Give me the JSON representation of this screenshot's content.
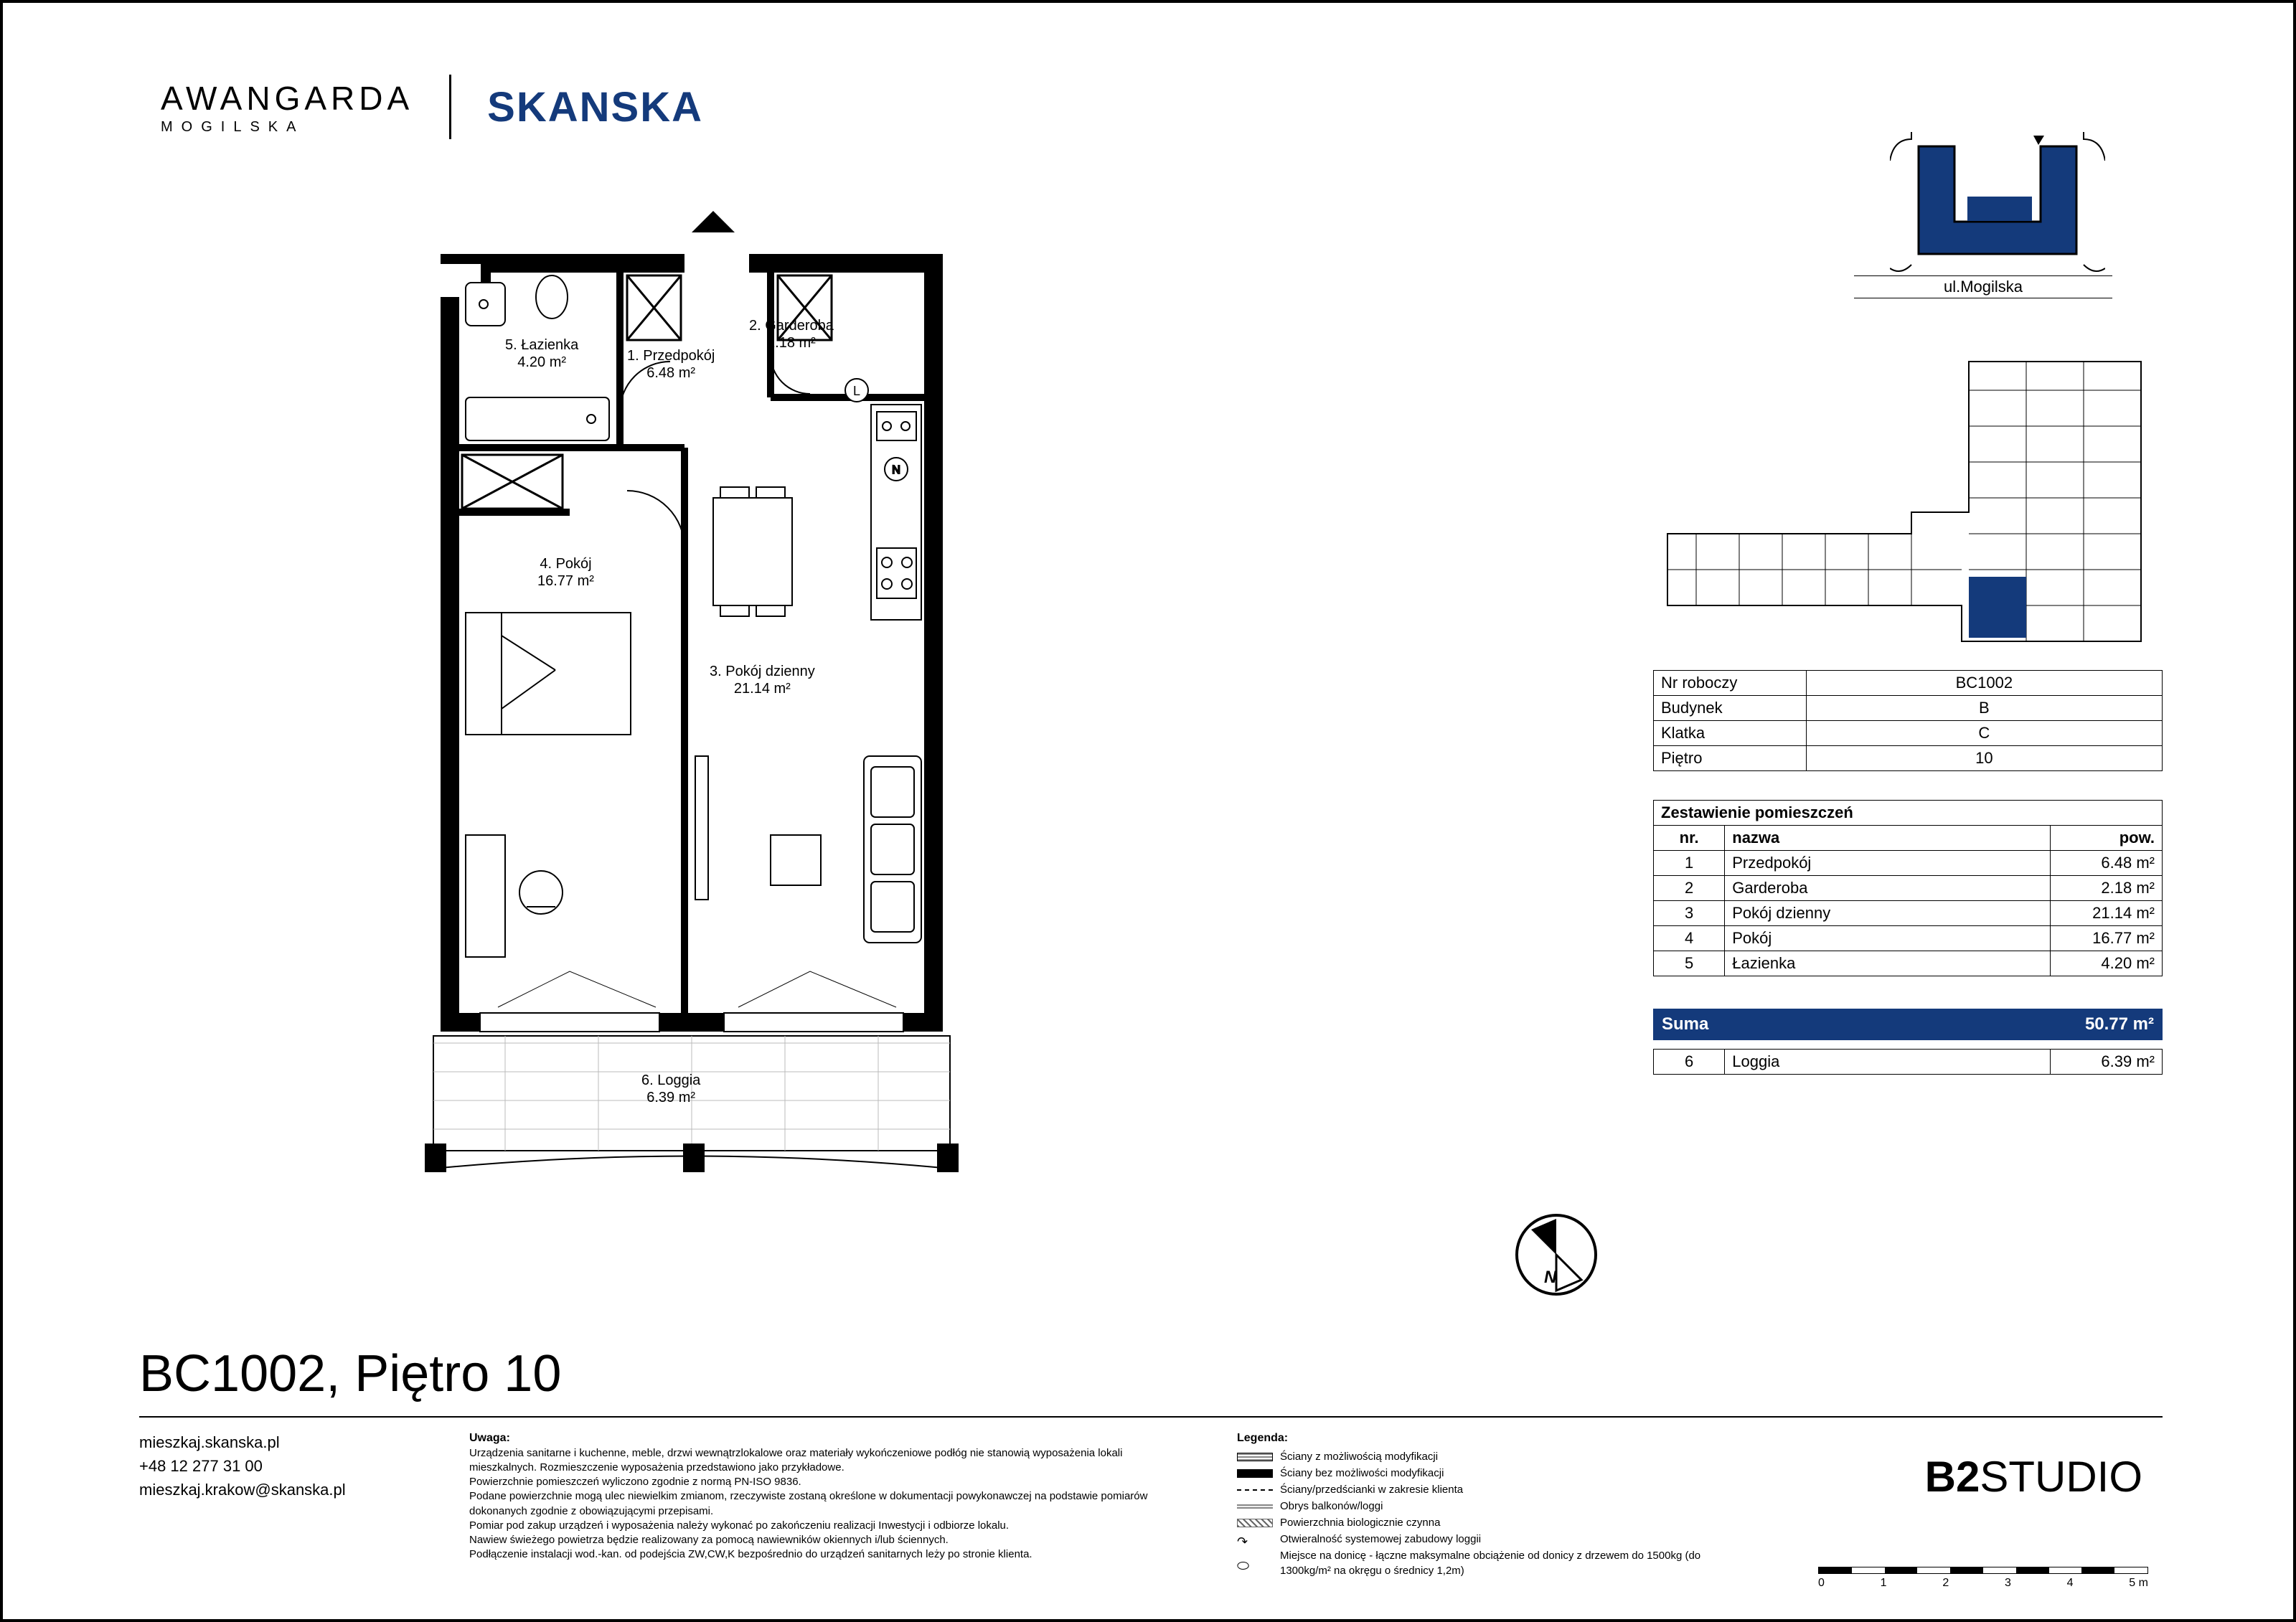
{
  "brand": {
    "logo1_line1": "AWANGARDA",
    "logo1_line2": "MOGILSKA",
    "logo2": "SKANSKA",
    "logo2_color": "#143a7b"
  },
  "colors": {
    "accent": "#143a7b",
    "black": "#000000",
    "white": "#ffffff"
  },
  "unit": {
    "title": "BC1002, Piętro 10",
    "street": "ul.Mogilska"
  },
  "info": [
    {
      "label": "Nr roboczy",
      "value": "BC1002"
    },
    {
      "label": "Budynek",
      "value": "B"
    },
    {
      "label": "Klatka",
      "value": "C"
    },
    {
      "label": "Piętro",
      "value": "10"
    }
  ],
  "rooms": {
    "header_title": "Zestawienie pomieszczeń",
    "col_nr": "nr.",
    "col_name": "nazwa",
    "col_area": "pow.",
    "rows": [
      {
        "nr": "1",
        "name": "Przedpokój",
        "area": "6.48 m²"
      },
      {
        "nr": "2",
        "name": "Garderoba",
        "area": "2.18 m²"
      },
      {
        "nr": "3",
        "name": "Pokój dzienny",
        "area": "21.14 m²"
      },
      {
        "nr": "4",
        "name": "Pokój",
        "area": "16.77 m²"
      },
      {
        "nr": "5",
        "name": "Łazienka",
        "area": "4.20 m²"
      }
    ],
    "sum_label": "Suma",
    "sum_value": "50.77 m²",
    "extra": {
      "nr": "6",
      "name": "Loggia",
      "area": "6.39 m²"
    }
  },
  "plan_labels": {
    "r1": "1. Przedpokój\n6.48 m²",
    "r2": "2. Garderoba\n2.18 m²",
    "r3": "3. Pokój dzienny\n21.14 m²",
    "r4": "4. Pokój\n16.77 m²",
    "r5": "5. Łazienka\n4.20 m²",
    "r6": "6. Loggia\n6.39 m²"
  },
  "contact": {
    "url": "mieszkaj.skanska.pl",
    "phone": "+48 12 277 31 00",
    "email": "mieszkaj.krakow@skanska.pl"
  },
  "notes": {
    "title": "Uwaga:",
    "lines": [
      "Urządzenia sanitarne i kuchenne, meble, drzwi wewnątrzlokalowe oraz materiały wykończeniowe podłóg nie stanowią wyposażenia lokali mieszkalnych. Rozmieszczenie wyposażenia przedstawiono jako przykładowe.",
      "Powierzchnie pomieszczeń wyliczono zgodnie z normą PN-ISO 9836.",
      "Podane powierzchnie mogą ulec niewielkim zmianom, rzeczywiste zostaną określone w dokumentacji powykonawczej na podstawie pomiarów dokonanych zgodnie z obowiązującymi przepisami.",
      "Pomiar pod zakup urządzeń i wyposażenia należy wykonać po zakończeniu realizacji Inwestycji i odbiorze lokalu.",
      "Nawiew świeżego powietrza będzie realizowany za pomocą nawiewników okiennych i/lub ściennych.",
      "Podłączenie instalacji wod.-kan. od podejścia ZW,CW,K bezpośrednio do urządzeń sanitarnych leży po stronie klienta."
    ]
  },
  "legend": {
    "title": "Legenda:",
    "items": [
      "Ściany z możliwością modyfikacji",
      "Ściany bez możliwości modyfikacji",
      "Ściany/przedścianki w zakresie klienta",
      "Obrys balkonów/loggi",
      "Powierzchnia biologicznie czynna",
      "Otwieralność systemowej zabudowy loggii",
      "Miejsce na donicę - łączne maksymalne obciążenie od donicy z drzewem do 1500kg (do 1300kg/m² na okręgu o średnicy 1,2m)"
    ]
  },
  "studio": {
    "b": "B2",
    "rest": "STUDIO"
  },
  "scale": {
    "ticks": [
      "0",
      "1",
      "2",
      "3",
      "4",
      "5 m"
    ]
  }
}
